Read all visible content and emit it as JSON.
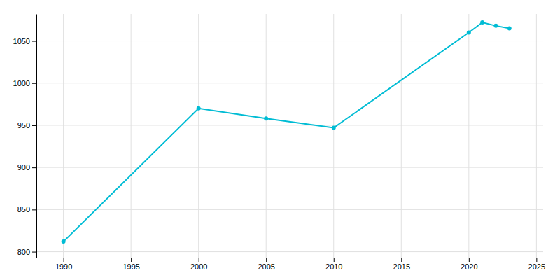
{
  "chart_data": {
    "type": "line",
    "x": [
      1990,
      2000,
      2005,
      2010,
      2020,
      2021,
      2022,
      2023
    ],
    "values": [
      812,
      970,
      958,
      947,
      1060,
      1072,
      1068,
      1065
    ],
    "color": "#00BCD4",
    "marker": "circle",
    "xlim": [
      1988,
      2025.5
    ],
    "ylim": [
      793,
      1082
    ],
    "xticks": [
      1990,
      1995,
      2000,
      2005,
      2010,
      2015,
      2020,
      2025
    ],
    "yticks": [
      800,
      850,
      900,
      950,
      1000,
      1050
    ],
    "grid": true
  }
}
